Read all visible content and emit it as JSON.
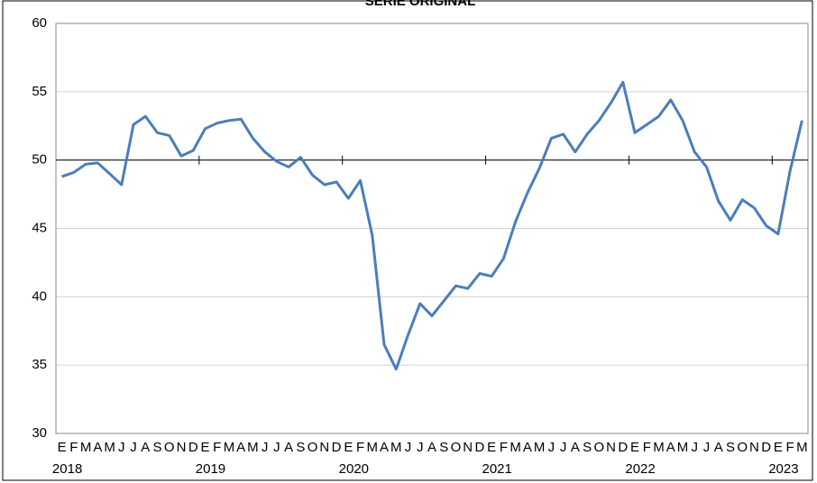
{
  "chart_data": {
    "type": "line",
    "title": "SERIE ORIGINAL",
    "categories": [
      "E",
      "F",
      "M",
      "A",
      "M",
      "J",
      "J",
      "A",
      "S",
      "O",
      "N",
      "D",
      "E",
      "F",
      "M",
      "A",
      "M",
      "J",
      "J",
      "A",
      "S",
      "O",
      "N",
      "D",
      "E",
      "F",
      "M",
      "A",
      "M",
      "J",
      "J",
      "A",
      "S",
      "O",
      "N",
      "D",
      "E",
      "F",
      "M",
      "A",
      "M",
      "J",
      "J",
      "A",
      "S",
      "O",
      "N",
      "D",
      "E",
      "F",
      "M",
      "A",
      "M",
      "J",
      "J",
      "A",
      "S",
      "O",
      "N",
      "D",
      "E",
      "F",
      "M"
    ],
    "years": [
      "2018",
      "2019",
      "2020",
      "2021",
      "2022",
      "2023"
    ],
    "series": [
      {
        "color": "#4a7ebb",
        "values": [
          48.8,
          49.1,
          49.7,
          49.8,
          49.0,
          48.2,
          52.6,
          53.2,
          52.0,
          51.8,
          50.3,
          50.7,
          52.3,
          52.7,
          52.9,
          53.0,
          51.6,
          50.6,
          49.9,
          49.5,
          50.2,
          48.9,
          48.2,
          48.4,
          47.2,
          48.5,
          44.5,
          36.5,
          34.7,
          37.2,
          39.5,
          38.6,
          39.7,
          40.8,
          40.6,
          41.7,
          41.5,
          42.8,
          45.5,
          47.6,
          49.4,
          51.6,
          51.9,
          50.6,
          51.9,
          52.9,
          54.2,
          55.7,
          52.0,
          52.6,
          53.2,
          54.4,
          52.9,
          50.6,
          49.5,
          47.0,
          45.6,
          47.1,
          46.5,
          45.2,
          44.6,
          49.2,
          52.9
        ]
      }
    ],
    "ylim": [
      30,
      60
    ],
    "yticks": [
      30,
      35,
      40,
      45,
      50,
      55,
      60
    ],
    "grid": true,
    "x_axis_at": 50
  }
}
